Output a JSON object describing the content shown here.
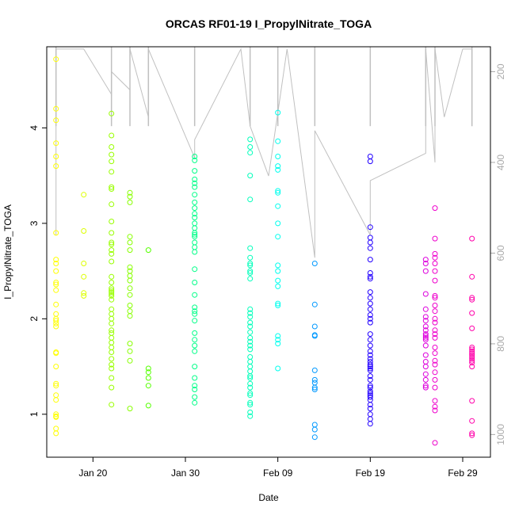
{
  "chart_data": {
    "type": "scatter",
    "title": "ORCAS RF01-19 I_PropylNitrate_TOGA",
    "xlabel": "Date",
    "ylabel": "I_PropylNitrate_TOGA",
    "x_ticks": [
      "Jan 20",
      "Jan 30",
      "Feb 09",
      "Feb 19",
      "Feb 29"
    ],
    "y_ticks": [
      1,
      2,
      3,
      4
    ],
    "y2_ticks": [
      200,
      400,
      600,
      800,
      1000
    ],
    "y2_direction": "reversed",
    "xlim": [
      "2016-01-15",
      "2016-03-03"
    ],
    "ylim": [
      0.55,
      4.85
    ],
    "y2lim": [
      1050,
      145
    ],
    "grid": false,
    "marker": "open-circle",
    "pressure_line_color": "#c0c0c0",
    "series": [
      {
        "color": "#ffff00",
        "x": "2016-01-16",
        "values": [
          4.72,
          4.2,
          4.08,
          3.84,
          3.7,
          3.6,
          2.9,
          2.62,
          2.58,
          2.5,
          2.38,
          2.36,
          2.3,
          2.15,
          2.05,
          2.0,
          1.98,
          1.95,
          1.92,
          1.65,
          1.64,
          1.5,
          1.32,
          1.3,
          1.2,
          1.15,
          1.0,
          0.98,
          0.97,
          0.85,
          0.8
        ]
      },
      {
        "color": "#ddff00",
        "x": "2016-01-19",
        "values": [
          3.3,
          2.92,
          2.58,
          2.44,
          2.27,
          2.24
        ]
      },
      {
        "color": "#99ff00",
        "x": "2016-01-22",
        "values": [
          4.15,
          3.92,
          3.8,
          3.72,
          3.65,
          3.54,
          3.38,
          3.36,
          3.2,
          3.02,
          2.9,
          2.8,
          2.78,
          2.72,
          2.68,
          2.6,
          2.44,
          2.38,
          2.32,
          2.3,
          2.28,
          2.26,
          2.24,
          2.2,
          2.1,
          2.05,
          2.0,
          1.95,
          1.88,
          1.85,
          1.8,
          1.75,
          1.7,
          1.65,
          1.58,
          1.52,
          1.48,
          1.38,
          1.28,
          1.1
        ]
      },
      {
        "color": "#88ff00",
        "x": "2016-01-24",
        "values": [
          3.32,
          3.28,
          3.22,
          2.86,
          2.8,
          2.72,
          2.54,
          2.5,
          2.45,
          2.4,
          2.32,
          2.25,
          2.14,
          2.08,
          2.03,
          1.74,
          1.66,
          1.56,
          1.06
        ]
      },
      {
        "color": "#55ff00",
        "x": "2016-01-26",
        "values": [
          2.72,
          1.48,
          1.44,
          1.38,
          1.3,
          1.09
        ]
      },
      {
        "color": "#00ff88",
        "x": "2016-01-31",
        "values": [
          3.7,
          3.66,
          3.55,
          3.46,
          3.42,
          3.38,
          3.3,
          3.22,
          3.16,
          3.1,
          3.06,
          3.0,
          2.95,
          2.9,
          2.88,
          2.86,
          2.8,
          2.75,
          2.7,
          2.52,
          2.38,
          2.25,
          2.12,
          2.08,
          2.05,
          1.98,
          1.85,
          1.78,
          1.72,
          1.66,
          1.5,
          1.38,
          1.3,
          1.26,
          1.18,
          1.12
        ]
      },
      {
        "color": "#00ffbb",
        "x": "2016-02-06",
        "values": [
          3.88,
          3.8,
          3.74,
          3.5,
          3.25,
          2.74,
          2.64,
          2.58,
          2.56,
          2.5,
          2.48,
          2.42,
          2.1,
          2.06,
          2.02,
          1.96,
          1.92,
          1.86,
          1.8,
          1.76,
          1.72,
          1.68,
          1.6,
          1.55,
          1.5,
          1.45,
          1.4,
          1.38,
          1.32,
          1.28,
          1.22,
          1.2,
          1.12,
          1.1,
          1.02,
          0.98
        ]
      },
      {
        "color": "#00ffee",
        "x": "2016-02-09",
        "values": [
          4.16,
          3.86,
          3.7,
          3.6,
          3.56,
          3.34,
          3.32,
          3.18,
          3.0,
          2.86,
          2.56,
          2.5,
          2.4,
          2.34,
          2.16,
          2.14,
          1.82,
          1.78,
          1.74,
          1.48
        ]
      },
      {
        "color": "#0099ff",
        "x": "2016-02-13",
        "values": [
          2.58,
          2.15,
          1.92,
          1.83,
          1.82,
          1.46,
          1.36,
          1.33,
          1.28,
          1.26,
          0.89,
          0.84,
          0.76
        ]
      },
      {
        "color": "#2200ff",
        "x": "2016-02-19",
        "values": [
          3.7,
          3.65,
          2.96,
          2.85,
          2.8,
          2.74,
          2.62,
          2.48,
          2.44,
          2.42,
          2.28,
          2.22,
          2.16,
          2.1,
          2.04,
          2.0,
          1.96,
          1.84,
          1.78,
          1.72,
          1.66,
          1.62,
          1.58,
          1.55,
          1.52,
          1.5,
          1.48,
          1.46,
          1.4,
          1.36,
          1.3,
          1.28,
          1.24,
          1.22,
          1.2,
          1.18,
          1.15,
          1.1,
          1.06,
          1.0,
          0.95,
          0.9
        ]
      },
      {
        "color": "#dd00dd",
        "x": "2016-02-25",
        "values": [
          2.62,
          2.58,
          2.5,
          2.26,
          2.1,
          2.02,
          1.98,
          1.92,
          1.88,
          1.84,
          1.82,
          1.8,
          1.78,
          1.72,
          1.62,
          1.55,
          1.5,
          1.42,
          1.36,
          1.3,
          1.28
        ]
      },
      {
        "color": "#ee00cc",
        "x": "2016-02-26",
        "values": [
          3.16,
          2.84,
          2.68,
          2.64,
          2.58,
          2.5,
          2.4,
          2.24,
          2.22,
          2.14,
          2.08,
          2.0,
          1.96,
          1.88,
          1.84,
          1.8,
          1.7,
          1.64,
          1.56,
          1.52,
          1.44,
          1.36,
          1.28,
          1.14,
          1.08,
          1.04,
          0.7
        ]
      },
      {
        "color": "#ff00aa",
        "x": "2016-03-01",
        "values": [
          2.84,
          2.44,
          2.22,
          2.2,
          2.06,
          1.9,
          1.7,
          1.68,
          1.66,
          1.64,
          1.62,
          1.6,
          1.58,
          1.56,
          1.54,
          1.5,
          1.14,
          0.93,
          0.8,
          0.78
        ]
      }
    ]
  }
}
